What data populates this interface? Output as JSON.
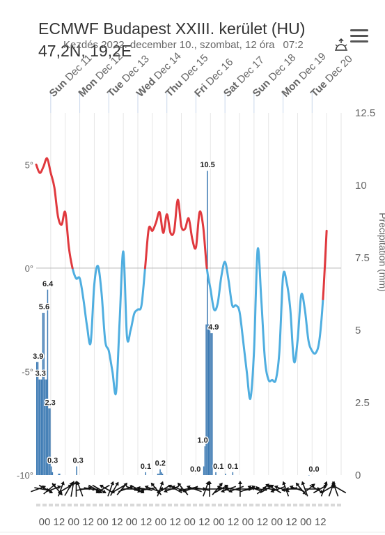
{
  "header": {
    "title": "ECMWF Budapest XXIII. kerület (HU)",
    "coords": "47,2N, 19,2E",
    "subtitle": "Kezdés 2022. december 10., szombat, 12 óra",
    "subtitle_tail": "07:2"
  },
  "icons": {
    "menu": "hamburger-menu-icon",
    "sunrise": "sunrise-icon"
  },
  "colors": {
    "temp_above_zero": "#e0393e",
    "temp_below_zero": "#4faee0",
    "precip_bar": "#3d7ab3",
    "grid": "#e6e6e6",
    "zero_line": "#b3b3b3"
  },
  "chart_data": {
    "type": "line",
    "days": [
      {
        "weekday": "Sun",
        "date": "Dec 11"
      },
      {
        "weekday": "Mon",
        "date": "Dec 12"
      },
      {
        "weekday": "Tue",
        "date": "Dec 13"
      },
      {
        "weekday": "Wed",
        "date": "Dec 14"
      },
      {
        "weekday": "Thu",
        "date": "Dec 15"
      },
      {
        "weekday": "Fri",
        "date": "Dec 16"
      },
      {
        "weekday": "Sat",
        "date": "Dec 17"
      },
      {
        "weekday": "Sun",
        "date": "Dec 18"
      },
      {
        "weekday": "Mon",
        "date": "Dec 19"
      },
      {
        "weekday": "Tue",
        "date": "Dec 20"
      }
    ],
    "hour_labels": [
      "00",
      "12",
      "00",
      "12",
      "00",
      "12",
      "00",
      "12",
      "00",
      "12",
      "00",
      "12",
      "00",
      "12",
      "00",
      "12",
      "00",
      "12",
      "00",
      "12"
    ],
    "x_range_hours": [
      0,
      252
    ],
    "left_axis": {
      "ticks": [
        5,
        0,
        -5,
        -10
      ],
      "tick_labels": [
        "5°",
        "0°",
        "-5°",
        "-10°"
      ],
      "range": [
        -10,
        7.5
      ]
    },
    "right_axis": {
      "label": "Precipitation (mm)",
      "ticks": [
        0,
        2.5,
        5,
        7.5,
        10,
        12.5
      ],
      "tick_labels": [
        "0",
        "2.5",
        "5",
        "7.5",
        "10",
        "12.5"
      ],
      "range": [
        0,
        12.5
      ]
    },
    "temperature": {
      "name": "Temperature",
      "points": [
        [
          0,
          5.0
        ],
        [
          3,
          4.6
        ],
        [
          6,
          4.9
        ],
        [
          9,
          5.3
        ],
        [
          12,
          4.6
        ],
        [
          15,
          3.9
        ],
        [
          18,
          2.5
        ],
        [
          21,
          2.1
        ],
        [
          24,
          2.7
        ],
        [
          27,
          1.0
        ],
        [
          30,
          0.0
        ],
        [
          33,
          -0.5
        ],
        [
          36,
          -0.5
        ],
        [
          39,
          -1.5
        ],
        [
          42,
          -2.8
        ],
        [
          45,
          -3.6
        ],
        [
          48,
          -0.8
        ],
        [
          51,
          0.1
        ],
        [
          54,
          -1.2
        ],
        [
          57,
          -3.5
        ],
        [
          60,
          -4.0
        ],
        [
          63,
          -5.0
        ],
        [
          66,
          -6.0
        ],
        [
          69,
          -2.5
        ],
        [
          72,
          0.8
        ],
        [
          75,
          -3.3
        ],
        [
          78,
          -3.0
        ],
        [
          81,
          -2.2
        ],
        [
          84,
          -2.0
        ],
        [
          87,
          -1.8
        ],
        [
          90,
          0.0
        ],
        [
          93,
          1.9
        ],
        [
          96,
          1.8
        ],
        [
          99,
          2.2
        ],
        [
          102,
          2.7
        ],
        [
          105,
          1.7
        ],
        [
          108,
          2.6
        ],
        [
          111,
          1.7
        ],
        [
          114,
          1.8
        ],
        [
          117,
          3.3
        ],
        [
          120,
          2.0
        ],
        [
          123,
          1.9
        ],
        [
          126,
          2.4
        ],
        [
          129,
          1.4
        ],
        [
          132,
          1.0
        ],
        [
          135,
          2.7
        ],
        [
          138,
          2.0
        ],
        [
          141,
          0.0
        ],
        [
          144,
          -1.0
        ],
        [
          147,
          -2.0
        ],
        [
          150,
          -1.7
        ],
        [
          153,
          -0.4
        ],
        [
          156,
          0.3
        ],
        [
          159,
          -0.6
        ],
        [
          162,
          -1.8
        ],
        [
          165,
          -1.8
        ],
        [
          168,
          -2.1
        ],
        [
          171,
          -3.5
        ],
        [
          174,
          -5.0
        ],
        [
          177,
          -6.3
        ],
        [
          180,
          -4.0
        ],
        [
          183,
          0.9
        ],
        [
          186,
          -1.5
        ],
        [
          189,
          -4.4
        ],
        [
          192,
          -5.4
        ],
        [
          195,
          -5.4
        ],
        [
          198,
          -5.4
        ],
        [
          201,
          -4.0
        ],
        [
          204,
          -0.4
        ],
        [
          207,
          -0.7
        ],
        [
          210,
          -2.0
        ],
        [
          213,
          -4.5
        ],
        [
          216,
          -3.5
        ],
        [
          219,
          -1.3
        ],
        [
          222,
          -2.0
        ],
        [
          225,
          -3.5
        ],
        [
          228,
          -4.0
        ],
        [
          231,
          -4.1
        ],
        [
          234,
          -3.5
        ],
        [
          237,
          -1.5
        ],
        [
          240,
          1.8
        ]
      ]
    },
    "precipitation": {
      "name": "Precipitation",
      "bars": [
        [
          0,
          3.9
        ],
        [
          1,
          3.9
        ],
        [
          2,
          3.3
        ],
        [
          3,
          3.3
        ],
        [
          4,
          3.3
        ],
        [
          5,
          5.6
        ],
        [
          6,
          5.6
        ],
        [
          7,
          3.3
        ],
        [
          8,
          3.3
        ],
        [
          9,
          6.4
        ],
        [
          10,
          2.3
        ],
        [
          11,
          2.3
        ],
        [
          12,
          0.3
        ],
        [
          13,
          0.1
        ],
        [
          18,
          0.05
        ],
        [
          19,
          0.05
        ],
        [
          33,
          0.3
        ],
        [
          90,
          0.1
        ],
        [
          100,
          0.05
        ],
        [
          101,
          0.05
        ],
        [
          102,
          0.2
        ],
        [
          103,
          0.1
        ],
        [
          104,
          0.05
        ],
        [
          138,
          0.3
        ],
        [
          139,
          1.0
        ],
        [
          140,
          5.2
        ],
        [
          141,
          10.5
        ],
        [
          142,
          5.2
        ],
        [
          143,
          5.2
        ],
        [
          144,
          4.9
        ],
        [
          145,
          4.9
        ],
        [
          148,
          0.1
        ],
        [
          156,
          0.05
        ],
        [
          162,
          0.1
        ],
        [
          225,
          0.0
        ]
      ],
      "data_labels": [
        {
          "hour": 1,
          "value": "3.9"
        },
        {
          "hour": 3,
          "value": "3.3"
        },
        {
          "hour": 6,
          "value": "5.6"
        },
        {
          "hour": 9,
          "value": "6.4"
        },
        {
          "hour": 11,
          "value": "2.3"
        },
        {
          "hour": 13,
          "value": "0.3"
        },
        {
          "hour": 34,
          "value": "0.3"
        },
        {
          "hour": 90,
          "value": "0.1"
        },
        {
          "hour": 102,
          "value": "0.2"
        },
        {
          "hour": 131,
          "value": "0.0"
        },
        {
          "hour": 137,
          "value": "1.0"
        },
        {
          "hour": 141,
          "value": "10.5"
        },
        {
          "hour": 146,
          "value": "4.9"
        },
        {
          "hour": 150,
          "value": "0.1"
        },
        {
          "hour": 162,
          "value": "0.1"
        },
        {
          "hour": 229,
          "value": "0.0"
        }
      ]
    },
    "wind_direction_degrees": [
      250,
      280,
      300,
      230,
      250,
      320,
      200,
      240,
      210,
      190,
      180,
      160,
      260,
      270,
      280,
      300,
      300,
      60,
      120,
      200,
      210,
      60,
      220,
      250,
      270,
      290,
      300,
      90,
      100,
      80,
      110,
      140,
      200,
      60,
      90,
      70,
      120,
      110,
      140,
      80,
      70,
      110,
      270,
      100,
      200,
      180,
      270,
      220,
      240,
      110,
      70,
      100,
      70,
      180,
      270,
      250,
      260,
      110,
      100,
      230,
      240,
      100,
      120,
      70,
      110,
      160,
      80,
      90,
      110,
      140,
      160,
      230,
      270,
      300,
      240,
      200,
      240,
      200,
      160,
      120
    ],
    "grid": true,
    "legend": "none"
  }
}
